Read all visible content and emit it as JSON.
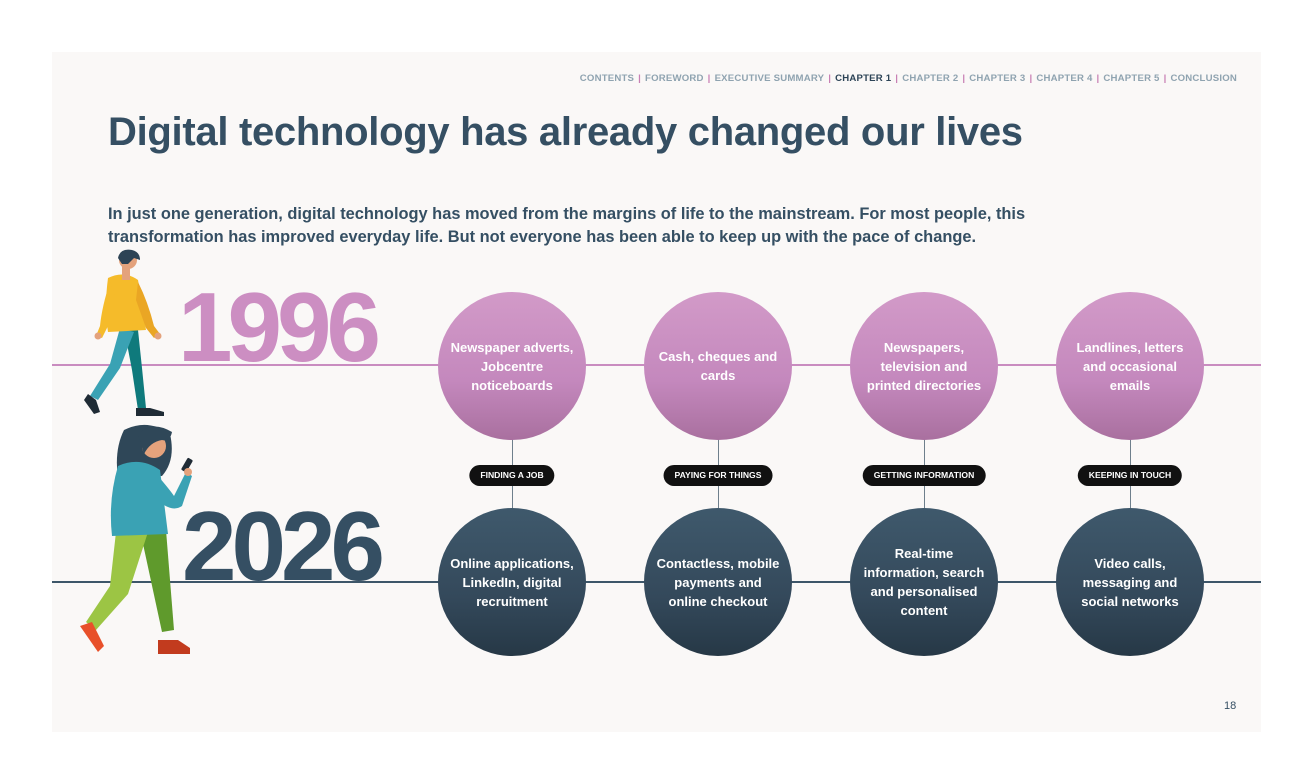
{
  "nav": {
    "items": [
      {
        "label": "CONTENTS",
        "active": false
      },
      {
        "label": "FOREWORD",
        "active": false
      },
      {
        "label": "EXECUTIVE SUMMARY",
        "active": false
      },
      {
        "label": "CHAPTER 1",
        "active": true
      },
      {
        "label": "CHAPTER 2",
        "active": false
      },
      {
        "label": "CHAPTER 3",
        "active": false
      },
      {
        "label": "CHAPTER 4",
        "active": false
      },
      {
        "label": "CHAPTER 5",
        "active": false
      },
      {
        "label": "CONCLUSION",
        "active": false
      }
    ],
    "separator": "|"
  },
  "title": "Digital technology has already changed our lives",
  "subtitle": "In just one generation, digital technology has moved from the margins of life to the mainstream. For most people, this transformation has improved everyday life. But not everyone has been able to keep up with the pace of change.",
  "years": {
    "past": "1996",
    "future": "2026"
  },
  "columns": [
    {
      "category": "FINDING A JOB",
      "past": "Newspaper adverts, Jobcentre noticeboards",
      "future": "Online applications, LinkedIn, digital recruitment"
    },
    {
      "category": "PAYING FOR THINGS",
      "past": "Cash, cheques and cards",
      "future": "Contactless, mobile payments and online checkout"
    },
    {
      "category": "GETTING INFORMATION",
      "past": "Newspapers, television and printed directories",
      "future": "Real-time information, search and personalised content"
    },
    {
      "category": "KEEPING IN TOUCH",
      "past": "Landlines, letters and occasional emails",
      "future": "Video calls, messaging and social networks"
    }
  ],
  "page_number": "18",
  "colors": {
    "title": "#354f63",
    "past_accent": "#cc8ec2",
    "future_accent": "#354f63",
    "pill": "#111111"
  }
}
